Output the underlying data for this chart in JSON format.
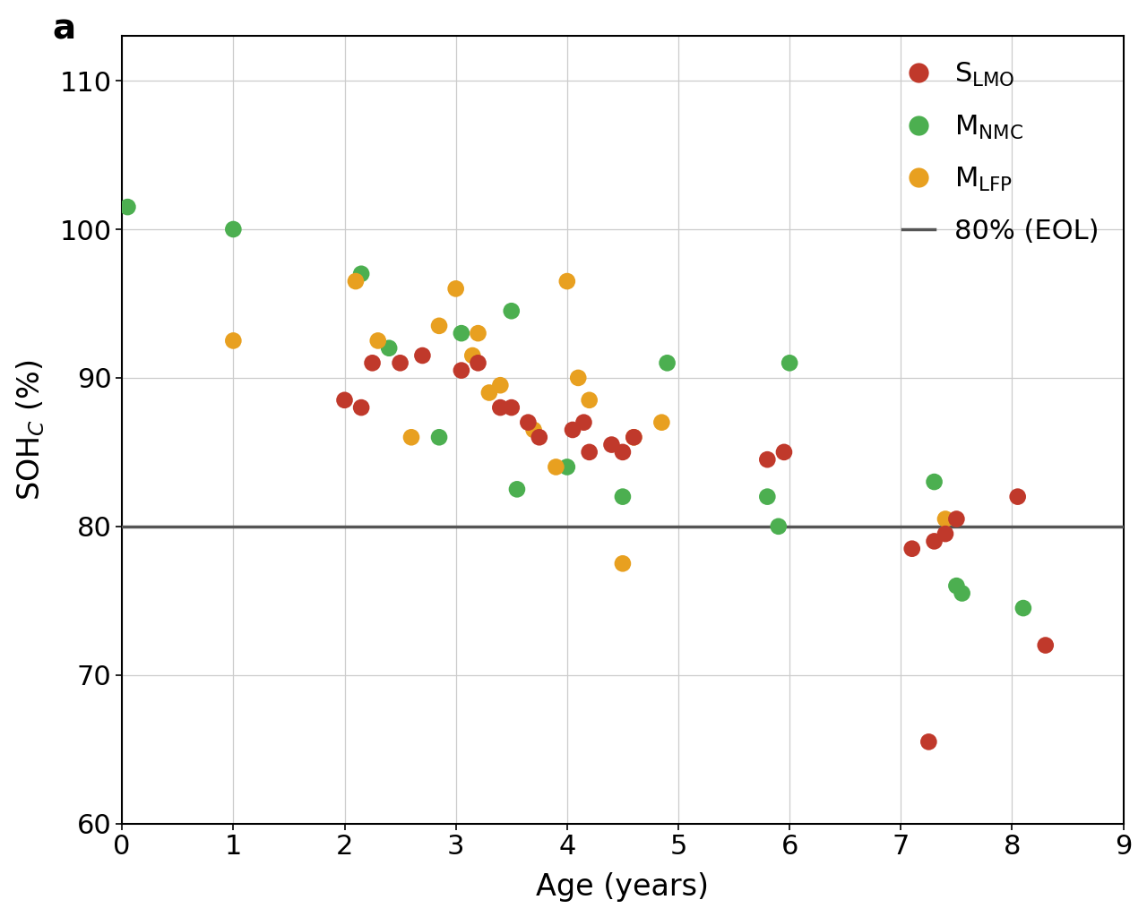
{
  "S_LMO": {
    "x": [
      2.0,
      2.15,
      2.25,
      2.5,
      2.7,
      3.05,
      3.2,
      3.4,
      3.5,
      3.65,
      3.75,
      4.05,
      4.15,
      4.2,
      4.4,
      4.5,
      4.6,
      5.8,
      5.95,
      7.1,
      7.3,
      7.4,
      7.5,
      8.05,
      8.3,
      7.25
    ],
    "y": [
      88.5,
      88.0,
      91.0,
      91.0,
      91.5,
      90.5,
      91.0,
      88.0,
      88.0,
      87.0,
      86.0,
      86.5,
      87.0,
      85.0,
      85.5,
      85.0,
      86.0,
      84.5,
      85.0,
      78.5,
      79.0,
      79.5,
      80.5,
      82.0,
      72.0,
      65.5
    ],
    "color": "#C0392B",
    "label": "S$_{\\mathrm{LMO}}$"
  },
  "M_NMC": {
    "x": [
      0.05,
      1.0,
      2.15,
      2.4,
      2.85,
      3.05,
      3.5,
      3.55,
      4.0,
      4.5,
      4.9,
      5.8,
      5.9,
      6.0,
      7.3,
      7.5,
      7.55,
      8.1
    ],
    "y": [
      101.5,
      100.0,
      97.0,
      92.0,
      86.0,
      93.0,
      94.5,
      82.5,
      84.0,
      82.0,
      91.0,
      82.0,
      80.0,
      91.0,
      83.0,
      76.0,
      75.5,
      74.5
    ],
    "color": "#4CAF50",
    "label": "M$_{\\mathrm{NMC}}$"
  },
  "M_LFP": {
    "x": [
      1.0,
      2.1,
      2.3,
      2.6,
      2.85,
      3.0,
      3.15,
      3.2,
      3.3,
      3.4,
      3.7,
      3.9,
      4.0,
      4.1,
      4.2,
      4.5,
      4.6,
      4.85,
      7.4
    ],
    "y": [
      92.5,
      96.5,
      92.5,
      86.0,
      93.5,
      96.0,
      91.5,
      93.0,
      89.0,
      89.5,
      86.5,
      84.0,
      96.5,
      90.0,
      88.5,
      77.5,
      86.0,
      87.0,
      80.5
    ],
    "color": "#E8A020",
    "label": "M$_{\\mathrm{LFP}}$"
  },
  "eol_y": 80,
  "eol_color": "#555555",
  "eol_label": "80% (EOL)",
  "xlabel": "Age (years)",
  "ylabel": "SOH$_{C}$ (%)",
  "xlim": [
    0,
    9
  ],
  "ylim": [
    60,
    113
  ],
  "yticks": [
    60,
    70,
    80,
    90,
    100,
    110
  ],
  "xticks": [
    0,
    1,
    2,
    3,
    4,
    5,
    6,
    7,
    8,
    9
  ],
  "panel_label": "a",
  "marker_size": 180,
  "bg_color": "#ffffff",
  "grid_color": "#cccccc",
  "tick_fontsize": 22,
  "label_fontsize": 24,
  "legend_fontsize": 22,
  "panel_fontsize": 28
}
